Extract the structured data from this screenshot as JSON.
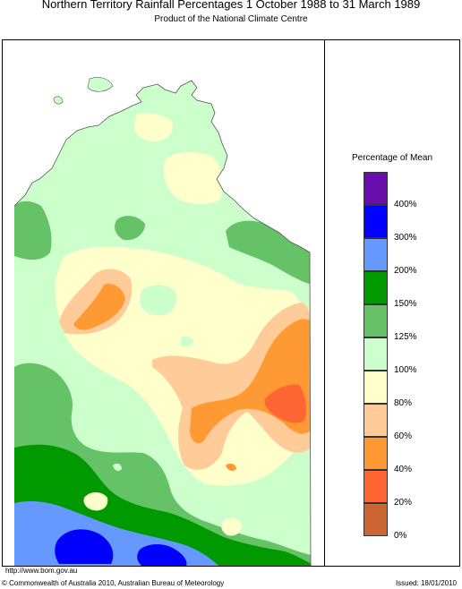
{
  "header": {
    "title": "Northern Territory Rainfall Percentages 1 October 1988 to 31 March 1989",
    "subtitle": "Product of the National Climate Centre"
  },
  "legend": {
    "title": "Percentage of Mean",
    "bins": [
      {
        "label": "400%",
        "color": "#6a0dad"
      },
      {
        "label": "300%",
        "color": "#0000ff"
      },
      {
        "label": "200%",
        "color": "#6699ff"
      },
      {
        "label": "150%",
        "color": "#009900"
      },
      {
        "label": "125%",
        "color": "#66c266"
      },
      {
        "label": "100%",
        "color": "#ccffcc"
      },
      {
        "label": "80%",
        "color": "#ffffcc"
      },
      {
        "label": "60%",
        "color": "#ffcc99"
      },
      {
        "label": "40%",
        "color": "#ff9933"
      },
      {
        "label": "20%",
        "color": "#ff6633"
      },
      {
        "label": "0%",
        "color": "#cc6633"
      }
    ]
  },
  "footer": {
    "url": "http://www.bom.gov.au",
    "copyright": "© Commonwealth of Australia 2010, Australian Bureau of Meteorology",
    "issued": "Issued: 18/01/2010"
  }
}
